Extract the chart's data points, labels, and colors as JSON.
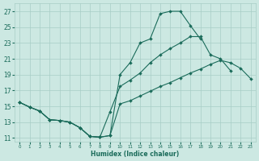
{
  "xlabel": "Humidex (Indice chaleur)",
  "bg_color": "#cce8e2",
  "grid_color": "#a8cdc6",
  "line_color": "#1a6b5a",
  "xlim": [
    -0.5,
    23.5
  ],
  "ylim": [
    10.5,
    28.0
  ],
  "xticks": [
    0,
    1,
    2,
    3,
    4,
    5,
    6,
    7,
    8,
    9,
    10,
    11,
    12,
    13,
    14,
    15,
    16,
    17,
    18,
    19,
    20,
    21,
    22,
    23
  ],
  "yticks": [
    11,
    13,
    15,
    17,
    19,
    21,
    23,
    25,
    27
  ],
  "curve_top_x": [
    0,
    1,
    2,
    3,
    4,
    5,
    6,
    7,
    8,
    9,
    10,
    11,
    12,
    13,
    14,
    15,
    16,
    17,
    18
  ],
  "curve_top_y": [
    15.5,
    14.9,
    14.4,
    13.3,
    13.2,
    13.0,
    12.3,
    11.2,
    11.1,
    11.3,
    19.0,
    20.5,
    23.0,
    23.5,
    26.7,
    27.0,
    27.0,
    25.2,
    23.5
  ],
  "curve_mid_x": [
    0,
    1,
    2,
    3,
    4,
    5,
    6,
    7,
    8,
    9,
    10,
    11,
    12,
    13,
    14,
    15,
    16,
    17,
    18,
    19,
    20,
    21
  ],
  "curve_mid_y": [
    15.5,
    14.9,
    14.4,
    13.3,
    13.2,
    13.0,
    12.3,
    11.2,
    11.1,
    14.3,
    17.5,
    18.3,
    19.2,
    20.5,
    21.5,
    22.3,
    23.0,
    23.8,
    23.8,
    21.5,
    21.0,
    19.5
  ],
  "curve_bot_x": [
    0,
    1,
    2,
    3,
    4,
    5,
    6,
    7,
    8,
    9,
    10,
    11,
    12,
    13,
    14,
    15,
    16,
    17,
    18,
    19,
    20,
    21,
    22,
    23
  ],
  "curve_bot_y": [
    15.5,
    14.9,
    14.4,
    13.3,
    13.2,
    13.0,
    12.3,
    11.2,
    11.1,
    11.3,
    15.3,
    15.7,
    16.3,
    16.9,
    17.5,
    18.0,
    18.6,
    19.2,
    19.7,
    20.3,
    20.8,
    20.5,
    19.8,
    18.5
  ]
}
